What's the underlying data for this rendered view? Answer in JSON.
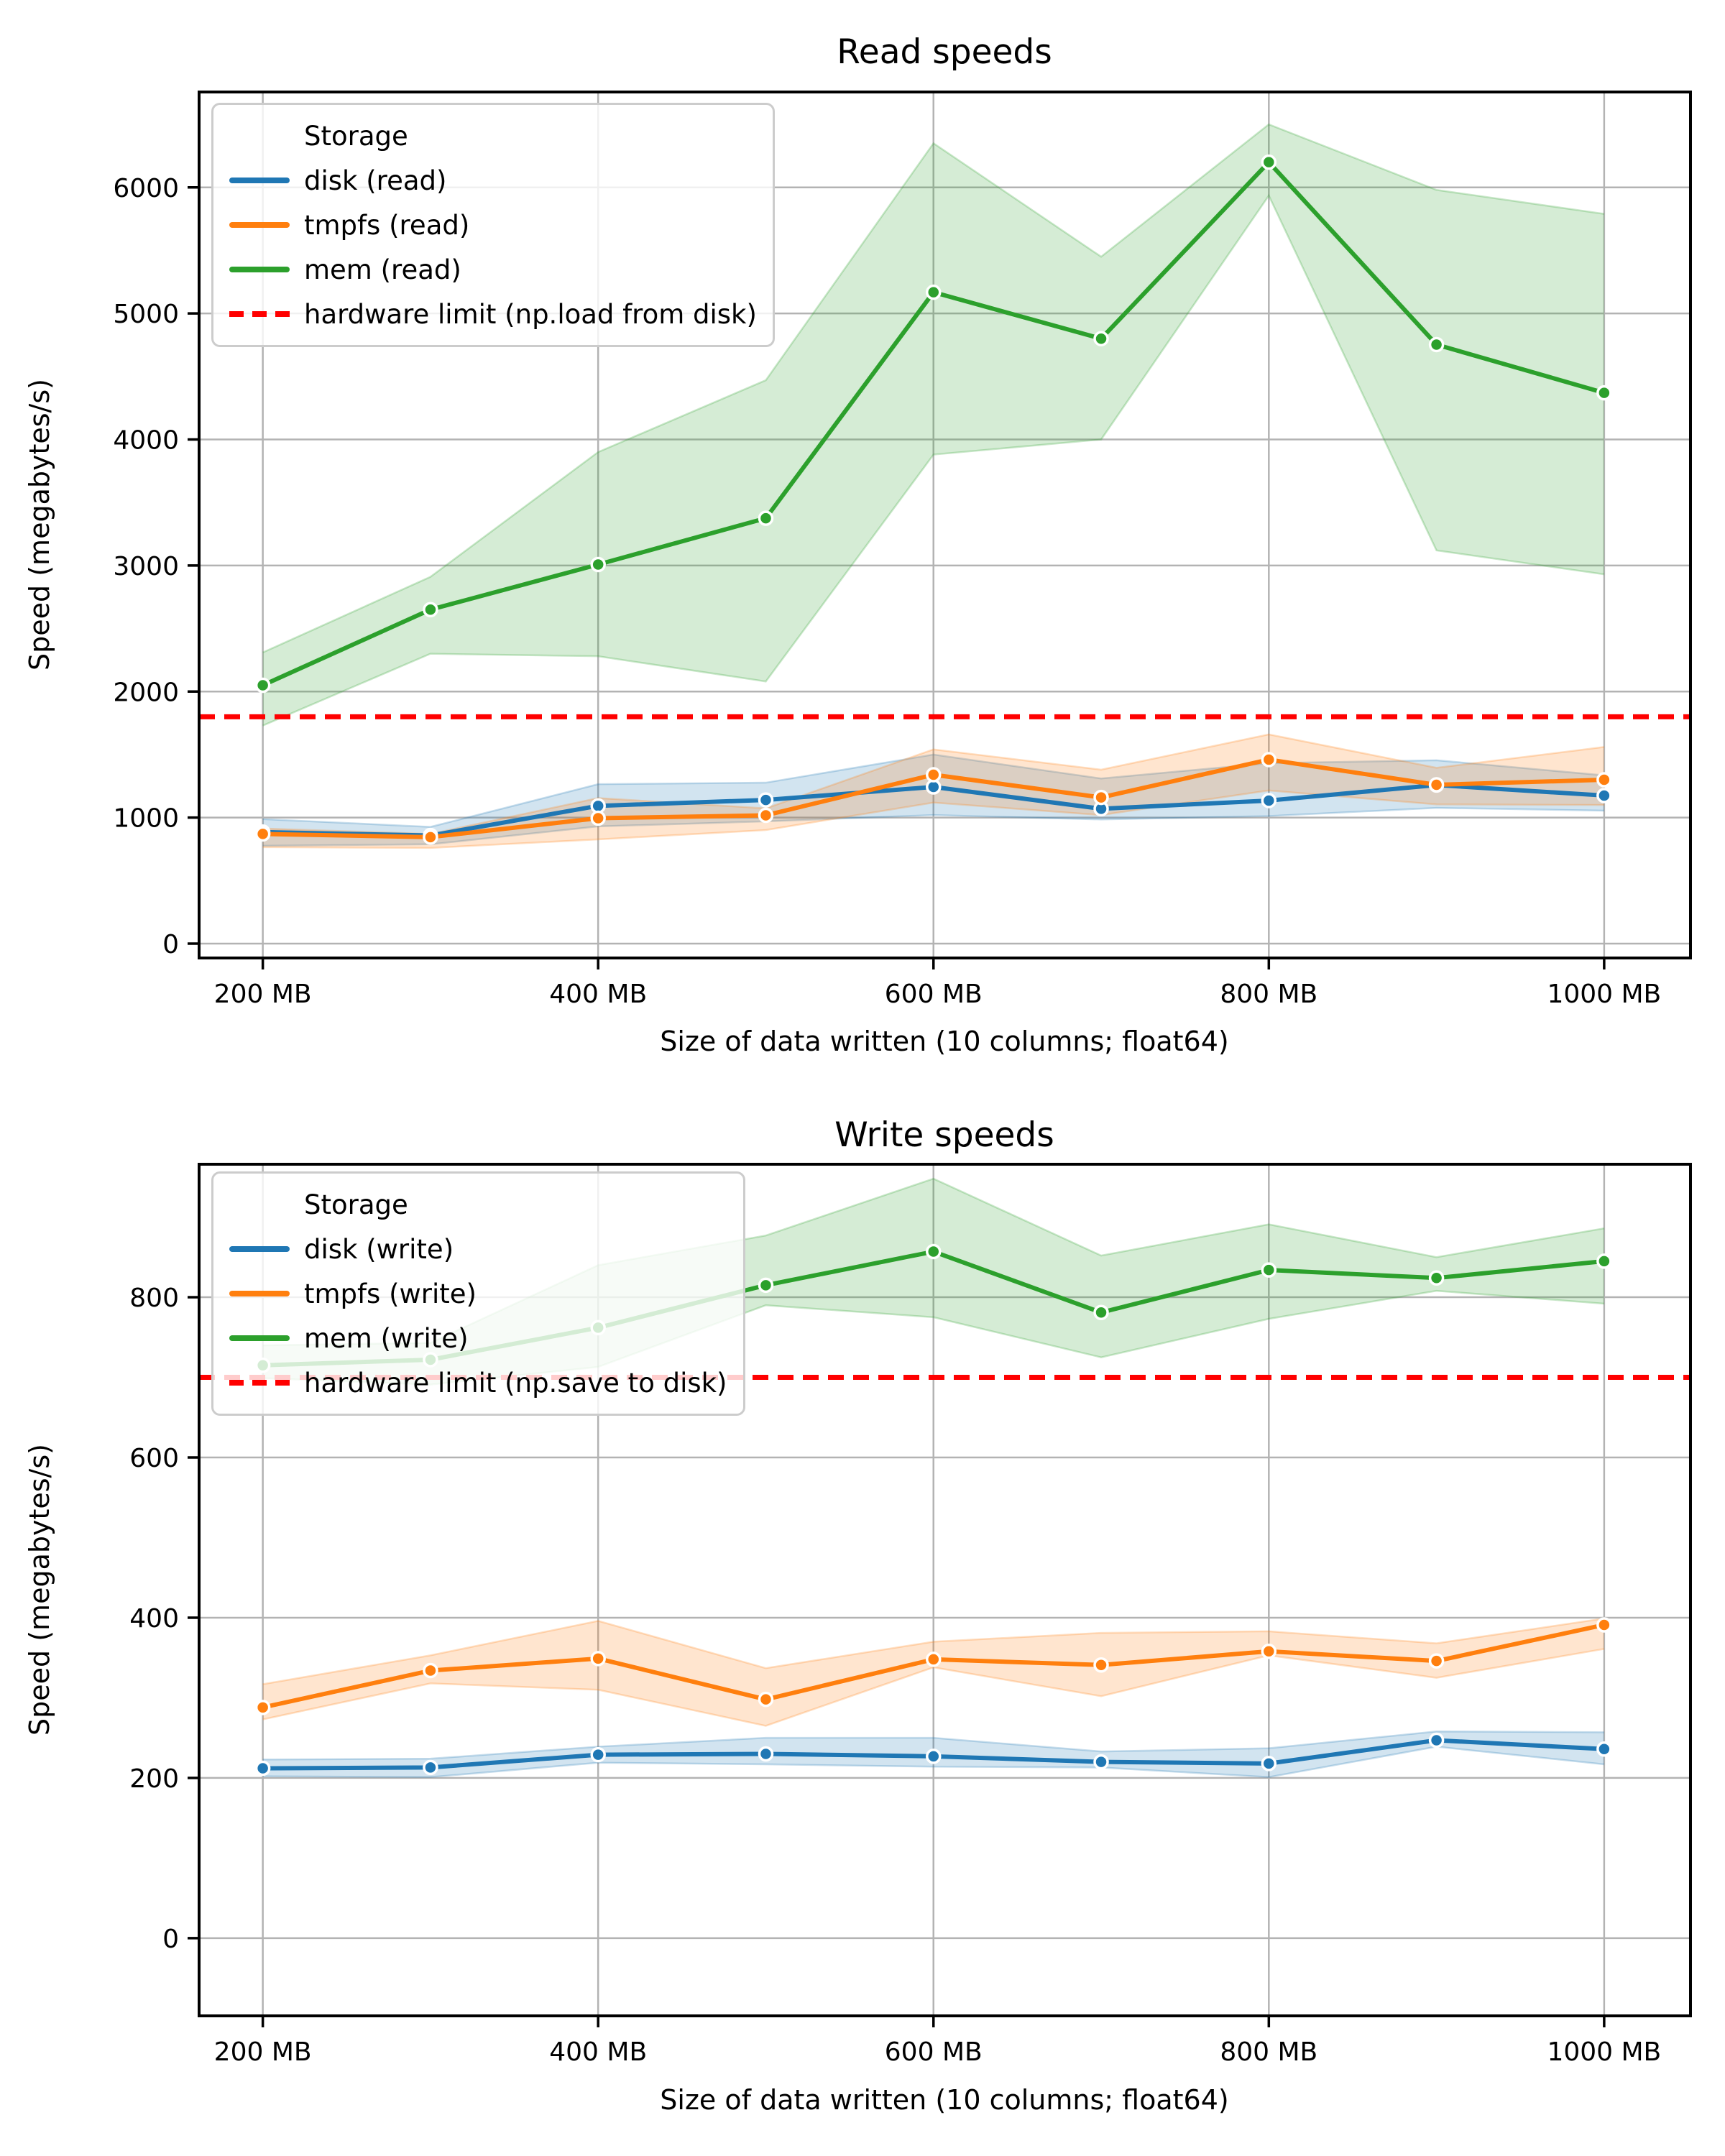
{
  "chart_data": [
    {
      "type": "line",
      "title": "Read speeds",
      "xlabel": "Size of data written (10 columns; float64)",
      "ylabel": "Speed (megabytes/s)",
      "x": [
        200,
        300,
        400,
        500,
        600,
        700,
        800,
        900,
        1000
      ],
      "x_tick_values": [
        200,
        400,
        600,
        800,
        1000
      ],
      "x_tick_labels": [
        "200 MB",
        "400 MB",
        "600 MB",
        "800 MB",
        "1000 MB"
      ],
      "y_tick_values": [
        0,
        1000,
        2000,
        3000,
        4000,
        5000,
        6000
      ],
      "xlim": [
        162,
        1051.5
      ],
      "ylim": [
        -114,
        6757
      ],
      "grid": true,
      "legend_position": "upper left",
      "legend": {
        "title": "Storage"
      },
      "series": [
        {
          "name": "disk (read)",
          "color": "#1f77b4",
          "values": [
            885,
            858,
            1093,
            1140,
            1243,
            1070,
            1135,
            1258,
            1175
          ],
          "band_low": [
            776,
            788,
            930,
            970,
            1020,
            985,
            1012,
            1077,
            1055
          ],
          "band_high": [
            988,
            926,
            1265,
            1277,
            1500,
            1310,
            1432,
            1455,
            1335
          ]
        },
        {
          "name": "tmpfs (read)",
          "color": "#ff7f0e",
          "values": [
            870,
            845,
            995,
            1018,
            1340,
            1160,
            1460,
            1260,
            1300
          ],
          "band_low": [
            765,
            759,
            827,
            901,
            1119,
            1020,
            1215,
            1105,
            1100
          ],
          "band_high": [
            913,
            870,
            1155,
            1073,
            1541,
            1380,
            1660,
            1395,
            1560
          ]
        },
        {
          "name": "mem (read)",
          "color": "#2ca02c",
          "values": [
            2050,
            2650,
            3008,
            3375,
            5168,
            4800,
            6200,
            4753,
            4370
          ],
          "band_low": [
            1730,
            2300,
            2280,
            2080,
            3880,
            4000,
            5935,
            3120,
            2930
          ],
          "band_high": [
            2310,
            2910,
            3900,
            4470,
            6350,
            5450,
            6500,
            5980,
            5790
          ]
        }
      ],
      "hline": {
        "label": "hardware limit (np.load from disk)",
        "value": 1800,
        "color": "#ff0000",
        "style": "dashed"
      }
    },
    {
      "type": "line",
      "title": "Write speeds",
      "xlabel": "Size of data written (10 columns; float64)",
      "ylabel": "Speed (megabytes/s)",
      "x": [
        200,
        300,
        400,
        500,
        600,
        700,
        800,
        900,
        1000
      ],
      "x_tick_values": [
        200,
        400,
        600,
        800,
        1000
      ],
      "x_tick_labels": [
        "200 MB",
        "400 MB",
        "600 MB",
        "800 MB",
        "1000 MB"
      ],
      "y_tick_values": [
        0,
        200,
        400,
        600,
        800
      ],
      "xlim": [
        162,
        1051.5
      ],
      "ylim": [
        -97,
        966
      ],
      "grid": true,
      "legend_position": "upper left",
      "legend": {
        "title": "Storage"
      },
      "series": [
        {
          "name": "disk (write)",
          "color": "#1f77b4",
          "values": [
            212,
            213,
            229,
            230,
            227,
            220,
            218,
            247,
            236
          ],
          "band_low": [
            202,
            201,
            219,
            217,
            214,
            213,
            201,
            239,
            217
          ],
          "band_high": [
            223,
            224,
            239,
            250,
            250,
            233,
            237,
            258,
            257
          ]
        },
        {
          "name": "tmpfs (write)",
          "color": "#ff7f0e",
          "values": [
            288,
            334,
            349,
            298,
            348,
            341,
            358,
            346,
            391
          ],
          "band_low": [
            273,
            318,
            310,
            265,
            338,
            302,
            353,
            325,
            361
          ],
          "band_high": [
            317,
            353,
            396,
            337,
            370,
            381,
            383,
            368,
            399
          ]
        },
        {
          "name": "mem (write)",
          "color": "#2ca02c",
          "values": [
            715,
            722,
            762,
            815,
            857,
            781,
            834,
            824,
            845
          ],
          "band_low": [
            699,
            691,
            713,
            790,
            775,
            725,
            773,
            808,
            792
          ],
          "band_high": [
            740,
            743,
            840,
            877,
            948,
            852,
            891,
            850,
            886
          ]
        }
      ],
      "hline": {
        "label": "hardware limit (np.save to disk)",
        "value": 700,
        "color": "#ff0000",
        "style": "dashed"
      }
    }
  ],
  "style": {
    "grid_color": "#b3b3b3",
    "spine_color": "#000000",
    "band_alpha": 0.2,
    "marker_edge_color": "#ffffff"
  }
}
